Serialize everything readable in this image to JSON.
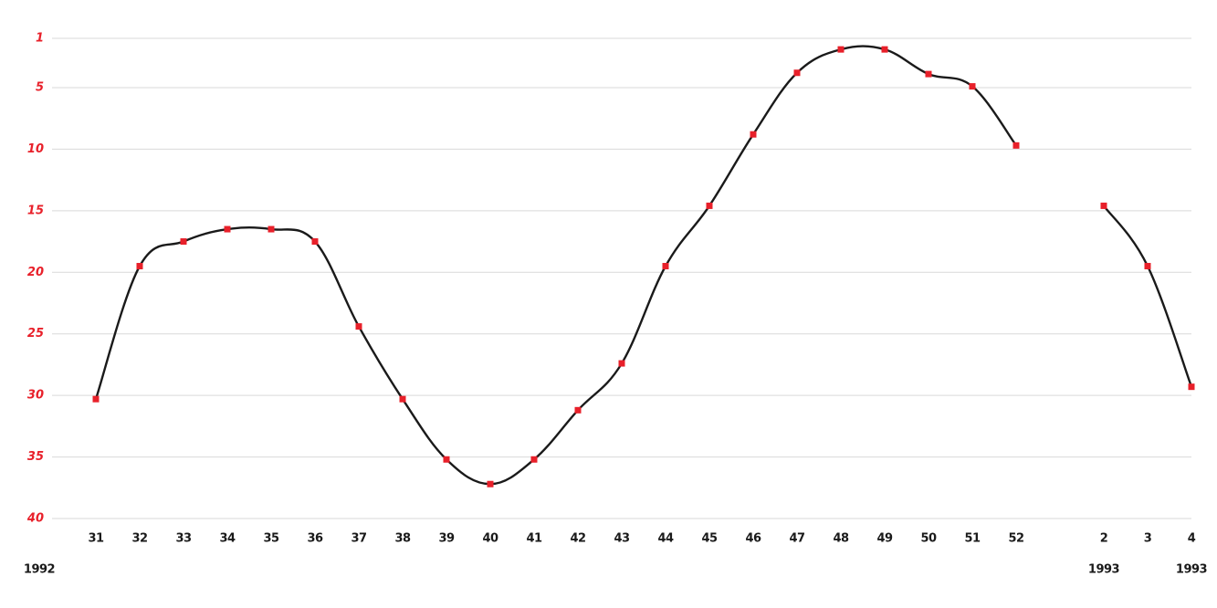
{
  "chart_data": {
    "type": "line",
    "categories": [
      "31",
      "32",
      "33",
      "34",
      "35",
      "36",
      "37",
      "38",
      "39",
      "40",
      "41",
      "42",
      "43",
      "44",
      "45",
      "46",
      "47",
      "48",
      "49",
      "50",
      "51",
      "52",
      null,
      "2",
      "3",
      "4"
    ],
    "series": [
      {
        "color": "#1a1a1a",
        "marker_color": "#e8202a",
        "values": [
          30.3,
          19.5,
          17.5,
          16.5,
          16.5,
          17.5,
          24.4,
          30.3,
          35.2,
          37.2,
          35.2,
          31.2,
          27.4,
          19.5,
          14.6,
          8.8,
          3.8,
          1.9,
          1.9,
          3.9,
          4.9,
          9.7,
          null,
          14.6,
          19.5,
          29.3
        ]
      }
    ],
    "ylim": [
      1,
      40
    ],
    "y_inverted": true,
    "yticks": [
      1,
      5,
      10,
      15,
      20,
      25,
      30,
      35,
      40
    ],
    "grid": true,
    "annotations": [
      "1992",
      "1993",
      "1993"
    ]
  }
}
